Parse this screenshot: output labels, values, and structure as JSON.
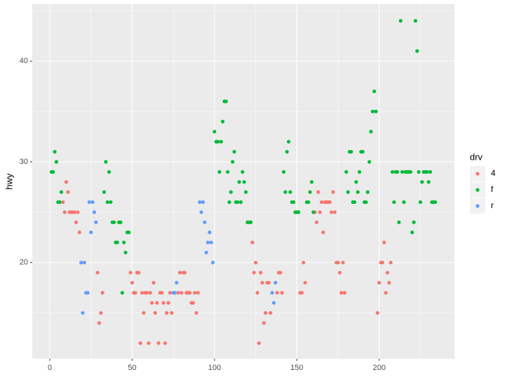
{
  "chart_data": {
    "type": "scatter",
    "y_label": "hwy",
    "legend_title": "drv",
    "legend_position": "right",
    "grid": true,
    "xlim": [
      -10.65,
      245.65
    ],
    "ylim": [
      10.45,
      45.65
    ],
    "xticks": [
      0,
      50,
      100,
      150,
      200
    ],
    "yticks": [
      20,
      30,
      40
    ],
    "series": [
      {
        "name": "4",
        "color": "#F8766D",
        "x": [
          8,
          9,
          10,
          11,
          12,
          13,
          14,
          15,
          16,
          17,
          18,
          29,
          30,
          31,
          32,
          49,
          50,
          51,
          52,
          53,
          54,
          55,
          56,
          57,
          58,
          59,
          60,
          61,
          62,
          63,
          64,
          65,
          66,
          67,
          68,
          69,
          70,
          71,
          72,
          73,
          74,
          78,
          79,
          80,
          81,
          82,
          83,
          84,
          85,
          86,
          87,
          88,
          89,
          90,
          123,
          124,
          125,
          126,
          127,
          128,
          129,
          130,
          131,
          132,
          133,
          134,
          138,
          139,
          140,
          141,
          152,
          153,
          154,
          155,
          161,
          162,
          163,
          164,
          165,
          166,
          167,
          168,
          169,
          170,
          171,
          172,
          173,
          174,
          175,
          176,
          177,
          178,
          179,
          199,
          200,
          201,
          202,
          203,
          204,
          205,
          206,
          207
        ],
        "values": [
          26,
          25,
          28,
          27,
          25,
          25,
          25,
          25,
          24,
          25,
          23,
          19,
          14,
          15,
          17,
          19,
          18,
          17,
          17,
          19,
          19,
          12,
          17,
          15,
          17,
          17,
          12,
          17,
          16,
          18,
          15,
          16,
          12,
          17,
          17,
          16,
          12,
          15,
          16,
          17,
          15,
          17,
          19,
          17,
          19,
          19,
          17,
          17,
          17,
          16,
          16,
          17,
          15,
          17,
          22,
          19,
          20,
          17,
          12,
          19,
          18,
          14,
          15,
          18,
          18,
          15,
          17,
          19,
          19,
          17,
          17,
          17,
          20,
          18,
          25,
          24,
          27,
          25,
          26,
          23,
          26,
          26,
          26,
          26,
          25,
          27,
          25,
          20,
          20,
          19,
          17,
          20,
          17,
          15,
          18,
          20,
          20,
          22,
          17,
          19,
          18,
          20
        ]
      },
      {
        "name": "f",
        "color": "#00BA38",
        "x": [
          1,
          2,
          3,
          4,
          5,
          6,
          7,
          33,
          34,
          35,
          36,
          37,
          38,
          39,
          40,
          41,
          42,
          43,
          44,
          45,
          46,
          47,
          48,
          100,
          101,
          102,
          103,
          104,
          105,
          106,
          107,
          108,
          109,
          110,
          111,
          112,
          113,
          114,
          115,
          116,
          117,
          118,
          119,
          120,
          121,
          122,
          142,
          143,
          144,
          145,
          146,
          147,
          148,
          149,
          150,
          151,
          156,
          157,
          158,
          159,
          160,
          180,
          181,
          182,
          183,
          184,
          185,
          186,
          187,
          188,
          189,
          190,
          191,
          192,
          193,
          194,
          195,
          196,
          197,
          198,
          208,
          209,
          210,
          211,
          212,
          213,
          214,
          215,
          216,
          217,
          218,
          219,
          220,
          221,
          222,
          223,
          224,
          225,
          226,
          227,
          228,
          229,
          230,
          231,
          232,
          233,
          234
        ],
        "values": [
          29,
          29,
          31,
          30,
          26,
          26,
          27,
          27,
          30,
          26,
          29,
          26,
          24,
          24,
          22,
          22,
          24,
          24,
          17,
          22,
          21,
          23,
          23,
          33,
          32,
          32,
          29,
          32,
          34,
          36,
          36,
          29,
          26,
          27,
          30,
          31,
          26,
          26,
          28,
          26,
          29,
          28,
          27,
          24,
          24,
          24,
          29,
          27,
          31,
          32,
          27,
          26,
          26,
          25,
          25,
          25,
          26,
          26,
          27,
          28,
          25,
          29,
          27,
          31,
          31,
          26,
          26,
          28,
          27,
          29,
          31,
          31,
          26,
          26,
          27,
          30,
          33,
          35,
          37,
          35,
          29,
          26,
          29,
          29,
          24,
          44,
          29,
          26,
          29,
          29,
          29,
          29,
          23,
          24,
          44,
          41,
          29,
          26,
          28,
          29,
          29,
          29,
          28,
          29,
          26,
          26,
          26
        ]
      },
      {
        "name": "r",
        "color": "#619CFF",
        "x": [
          19,
          20,
          21,
          22,
          23,
          24,
          25,
          26,
          27,
          28,
          75,
          76,
          77,
          91,
          92,
          93,
          94,
          95,
          96,
          97,
          98,
          99,
          135,
          136,
          137
        ],
        "values": [
          20,
          15,
          20,
          17,
          17,
          26,
          23,
          26,
          25,
          24,
          17,
          17,
          18,
          26,
          25,
          26,
          24,
          21,
          22,
          23,
          22,
          20,
          17,
          16,
          18
        ]
      }
    ]
  }
}
